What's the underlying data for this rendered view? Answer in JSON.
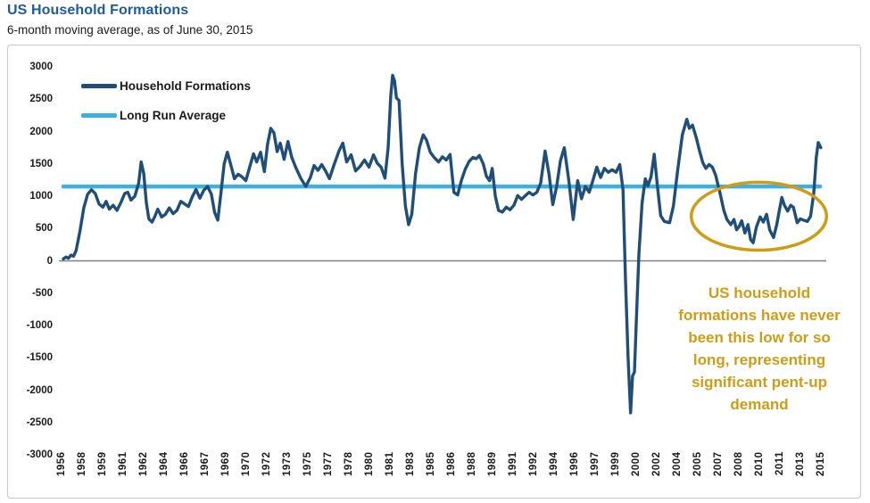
{
  "header": {
    "title": "US Household Formations",
    "subtitle": "6-month moving average, as of June 30, 2015"
  },
  "colors": {
    "title_blue": "#1F5C99",
    "series_navy": "#1F4E79",
    "average_light_blue": "#3FAEE1",
    "annotation_gold": "#CF9C15",
    "axis_text": "#1A1A1A",
    "zero_line_gray": "#808080",
    "frame_border_gray": "#C9C9C9"
  },
  "legend": {
    "items": [
      {
        "label": "Household Formations",
        "color": "#1F4E79"
      },
      {
        "label": "Long Run Average",
        "color": "#3FAEE1"
      }
    ]
  },
  "annotation": {
    "text": "US household\nformations have never\nbeen this low for so\nlong, representing\nsignificant pent-up\ndemand",
    "ellipse": {
      "center_year": 2010.5,
      "center_value": 690,
      "rx_years": 5.3,
      "ry_value": 525,
      "color": "#CF9C15"
    }
  },
  "chart_data": {
    "type": "line",
    "title": "US Household Formations",
    "subtitle": "6-month moving average, as of June 30, 2015",
    "ylabel": "",
    "xlabel": "",
    "ylim": [
      -3000,
      3000
    ],
    "y_ticks": [
      3000,
      2500,
      2000,
      1500,
      1000,
      500,
      0,
      -500,
      -1000,
      -1500,
      -2000,
      -2500,
      -3000
    ],
    "xlim_years": [
      1956,
      2015.5
    ],
    "x_tick_labels": [
      "1956",
      "1958",
      "1959",
      "1961",
      "1962",
      "1964",
      "1966",
      "1967",
      "1969",
      "1970",
      "1972",
      "1973",
      "1975",
      "1977",
      "1978",
      "1980",
      "1981",
      "1983",
      "1985",
      "1986",
      "1988",
      "1989",
      "1991",
      "1992",
      "1994",
      "1996",
      "1997",
      "1999",
      "2000",
      "2002",
      "2004",
      "2005",
      "2007",
      "2008",
      "2010",
      "2011",
      "2013",
      "2015"
    ],
    "grid": "zero-line-only",
    "legend_position": "top-left-inside",
    "long_run_average": {
      "name": "Long Run Average",
      "value": 1150,
      "x_start": 1956,
      "x_end": 2015.3,
      "color": "#3FAEE1"
    },
    "series": [
      {
        "name": "Household Formations",
        "color": "#1F4E79",
        "units": "thousands",
        "points": [
          [
            1956.0,
            30
          ],
          [
            1956.2,
            60
          ],
          [
            1956.4,
            40
          ],
          [
            1956.6,
            90
          ],
          [
            1956.8,
            70
          ],
          [
            1957.0,
            160
          ],
          [
            1957.3,
            460
          ],
          [
            1957.6,
            820
          ],
          [
            1957.9,
            1030
          ],
          [
            1958.2,
            1100
          ],
          [
            1958.5,
            1040
          ],
          [
            1958.8,
            880
          ],
          [
            1959.1,
            830
          ],
          [
            1959.35,
            920
          ],
          [
            1959.6,
            800
          ],
          [
            1959.9,
            860
          ],
          [
            1960.2,
            780
          ],
          [
            1960.5,
            900
          ],
          [
            1960.8,
            1040
          ],
          [
            1961.05,
            1060
          ],
          [
            1961.3,
            940
          ],
          [
            1961.6,
            1000
          ],
          [
            1961.9,
            1200
          ],
          [
            1962.1,
            1530
          ],
          [
            1962.3,
            1350
          ],
          [
            1962.5,
            900
          ],
          [
            1962.7,
            650
          ],
          [
            1962.95,
            600
          ],
          [
            1963.15,
            680
          ],
          [
            1963.4,
            800
          ],
          [
            1963.7,
            680
          ],
          [
            1964.0,
            720
          ],
          [
            1964.3,
            820
          ],
          [
            1964.6,
            730
          ],
          [
            1964.9,
            780
          ],
          [
            1965.2,
            920
          ],
          [
            1965.5,
            880
          ],
          [
            1965.8,
            840
          ],
          [
            1966.1,
            990
          ],
          [
            1966.4,
            1105
          ],
          [
            1966.7,
            970
          ],
          [
            1967.0,
            1090
          ],
          [
            1967.3,
            1150
          ],
          [
            1967.6,
            1030
          ],
          [
            1967.85,
            750
          ],
          [
            1968.1,
            630
          ],
          [
            1968.35,
            1050
          ],
          [
            1968.6,
            1500
          ],
          [
            1968.85,
            1680
          ],
          [
            1969.1,
            1500
          ],
          [
            1969.4,
            1270
          ],
          [
            1969.7,
            1340
          ],
          [
            1970.0,
            1300
          ],
          [
            1970.3,
            1240
          ],
          [
            1970.6,
            1450
          ],
          [
            1970.9,
            1655
          ],
          [
            1971.15,
            1530
          ],
          [
            1971.45,
            1680
          ],
          [
            1971.75,
            1380
          ],
          [
            1972.0,
            1800
          ],
          [
            1972.25,
            2050
          ],
          [
            1972.5,
            1980
          ],
          [
            1972.75,
            1690
          ],
          [
            1973.0,
            1820
          ],
          [
            1973.3,
            1570
          ],
          [
            1973.6,
            1845
          ],
          [
            1973.9,
            1600
          ],
          [
            1974.2,
            1450
          ],
          [
            1974.6,
            1280
          ],
          [
            1975.0,
            1150
          ],
          [
            1975.35,
            1290
          ],
          [
            1975.65,
            1475
          ],
          [
            1975.95,
            1400
          ],
          [
            1976.25,
            1490
          ],
          [
            1976.55,
            1390
          ],
          [
            1976.85,
            1270
          ],
          [
            1977.2,
            1480
          ],
          [
            1977.6,
            1700
          ],
          [
            1977.9,
            1820
          ],
          [
            1978.2,
            1530
          ],
          [
            1978.55,
            1640
          ],
          [
            1978.9,
            1390
          ],
          [
            1979.25,
            1460
          ],
          [
            1979.6,
            1560
          ],
          [
            1979.95,
            1450
          ],
          [
            1980.3,
            1640
          ],
          [
            1980.6,
            1510
          ],
          [
            1980.9,
            1450
          ],
          [
            1981.2,
            1280
          ],
          [
            1981.45,
            1750
          ],
          [
            1981.65,
            2550
          ],
          [
            1981.8,
            2870
          ],
          [
            1981.95,
            2780
          ],
          [
            1982.1,
            2520
          ],
          [
            1982.3,
            2480
          ],
          [
            1982.55,
            1500
          ],
          [
            1982.8,
            850
          ],
          [
            1983.05,
            560
          ],
          [
            1983.3,
            720
          ],
          [
            1983.6,
            1350
          ],
          [
            1983.9,
            1750
          ],
          [
            1984.2,
            1950
          ],
          [
            1984.45,
            1870
          ],
          [
            1984.75,
            1680
          ],
          [
            1985.05,
            1600
          ],
          [
            1985.4,
            1530
          ],
          [
            1985.7,
            1610
          ],
          [
            1986.0,
            1560
          ],
          [
            1986.3,
            1645
          ],
          [
            1986.6,
            1060
          ],
          [
            1986.9,
            1020
          ],
          [
            1987.2,
            1250
          ],
          [
            1987.5,
            1420
          ],
          [
            1987.8,
            1540
          ],
          [
            1988.1,
            1600
          ],
          [
            1988.35,
            1580
          ],
          [
            1988.6,
            1630
          ],
          [
            1988.9,
            1500
          ],
          [
            1989.15,
            1310
          ],
          [
            1989.4,
            1240
          ],
          [
            1989.6,
            1430
          ],
          [
            1989.85,
            1000
          ],
          [
            1990.1,
            780
          ],
          [
            1990.4,
            755
          ],
          [
            1990.7,
            830
          ],
          [
            1991.0,
            790
          ],
          [
            1991.3,
            860
          ],
          [
            1991.6,
            1010
          ],
          [
            1991.9,
            950
          ],
          [
            1992.2,
            1010
          ],
          [
            1992.5,
            1060
          ],
          [
            1992.8,
            1020
          ],
          [
            1993.1,
            1060
          ],
          [
            1993.4,
            1200
          ],
          [
            1993.75,
            1700
          ],
          [
            1994.05,
            1350
          ],
          [
            1994.35,
            870
          ],
          [
            1994.65,
            1150
          ],
          [
            1994.95,
            1550
          ],
          [
            1995.25,
            1750
          ],
          [
            1995.6,
            1250
          ],
          [
            1995.95,
            640
          ],
          [
            1996.3,
            1240
          ],
          [
            1996.6,
            960
          ],
          [
            1996.9,
            1150
          ],
          [
            1997.2,
            1060
          ],
          [
            1997.5,
            1250
          ],
          [
            1997.8,
            1450
          ],
          [
            1998.1,
            1290
          ],
          [
            1998.4,
            1430
          ],
          [
            1998.7,
            1370
          ],
          [
            1999.0,
            1410
          ],
          [
            1999.3,
            1370
          ],
          [
            1999.6,
            1490
          ],
          [
            1999.85,
            1100
          ],
          [
            2000.05,
            -300
          ],
          [
            2000.25,
            -1500
          ],
          [
            2000.45,
            -2350
          ],
          [
            2000.6,
            -1780
          ],
          [
            2000.75,
            -1720
          ],
          [
            2000.9,
            -900
          ],
          [
            2001.1,
            100
          ],
          [
            2001.35,
            900
          ],
          [
            2001.6,
            1270
          ],
          [
            2001.8,
            1160
          ],
          [
            2002.05,
            1300
          ],
          [
            2002.3,
            1650
          ],
          [
            2002.55,
            1150
          ],
          [
            2002.8,
            700
          ],
          [
            2003.1,
            610
          ],
          [
            2003.5,
            590
          ],
          [
            2003.8,
            850
          ],
          [
            2004.1,
            1350
          ],
          [
            2004.5,
            1950
          ],
          [
            2004.85,
            2190
          ],
          [
            2005.05,
            2050
          ],
          [
            2005.3,
            2100
          ],
          [
            2005.6,
            1900
          ],
          [
            2005.85,
            1700
          ],
          [
            2006.1,
            1520
          ],
          [
            2006.35,
            1430
          ],
          [
            2006.6,
            1490
          ],
          [
            2006.85,
            1450
          ],
          [
            2007.1,
            1330
          ],
          [
            2007.45,
            1050
          ],
          [
            2007.75,
            780
          ],
          [
            2008.0,
            640
          ],
          [
            2008.3,
            560
          ],
          [
            2008.55,
            640
          ],
          [
            2008.75,
            480
          ],
          [
            2008.95,
            530
          ],
          [
            2009.15,
            620
          ],
          [
            2009.4,
            430
          ],
          [
            2009.65,
            560
          ],
          [
            2009.85,
            330
          ],
          [
            2010.05,
            280
          ],
          [
            2010.3,
            520
          ],
          [
            2010.6,
            680
          ],
          [
            2010.85,
            600
          ],
          [
            2011.1,
            720
          ],
          [
            2011.35,
            480
          ],
          [
            2011.65,
            360
          ],
          [
            2011.9,
            560
          ],
          [
            2012.1,
            780
          ],
          [
            2012.3,
            980
          ],
          [
            2012.5,
            860
          ],
          [
            2012.75,
            770
          ],
          [
            2013.0,
            860
          ],
          [
            2013.2,
            830
          ],
          [
            2013.5,
            590
          ],
          [
            2013.75,
            650
          ],
          [
            2014.0,
            630
          ],
          [
            2014.3,
            610
          ],
          [
            2014.55,
            690
          ],
          [
            2014.8,
            1050
          ],
          [
            2015.0,
            1600
          ],
          [
            2015.15,
            1830
          ],
          [
            2015.35,
            1750
          ]
        ]
      }
    ]
  }
}
